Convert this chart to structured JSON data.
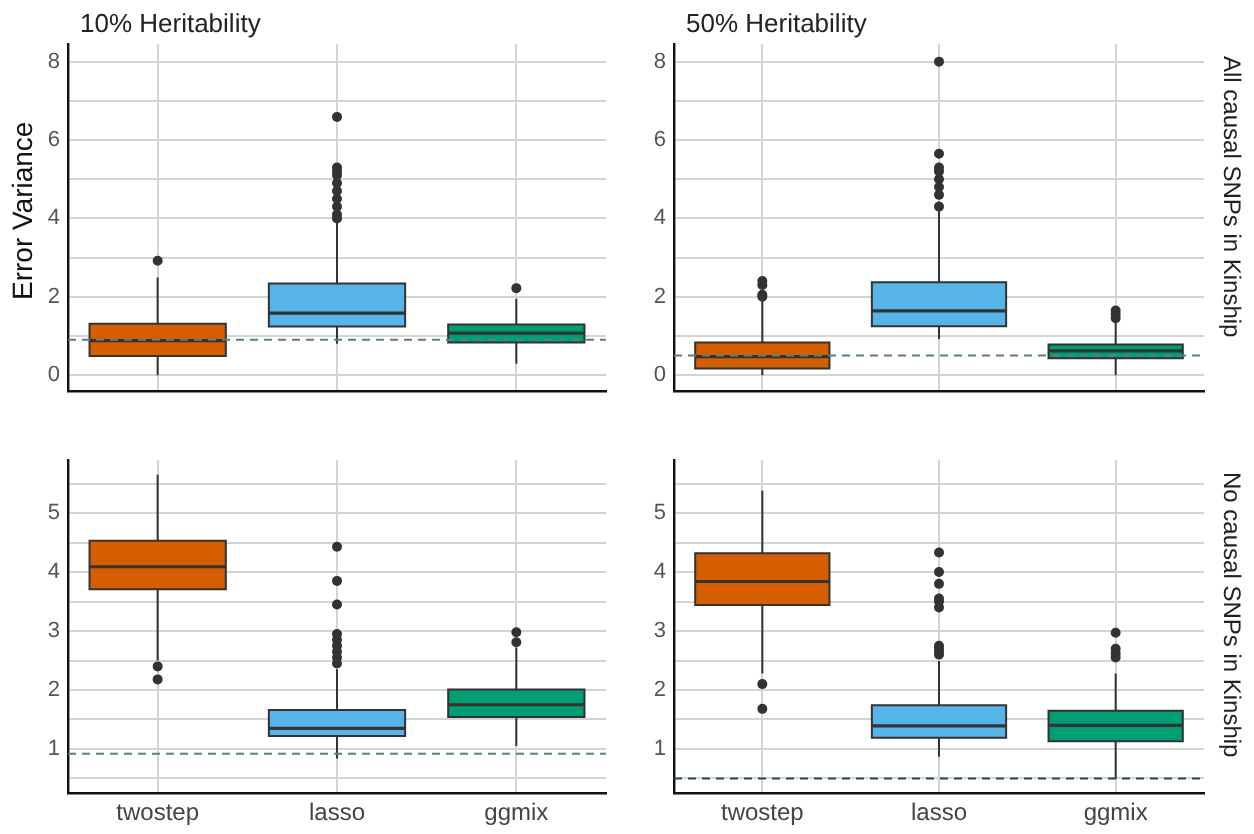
{
  "chart_data": [
    {
      "type": "box",
      "title": "10% Heritability",
      "ylabel": "Error Variance",
      "categories": [
        null,
        null,
        null
      ],
      "colors": [
        "#d55e00",
        "#56b4e9",
        "#009e73"
      ],
      "boxes": [
        {
          "low": 0,
          "q1": 0.49,
          "median": 0.88,
          "q3": 1.31,
          "high": 2.49,
          "outliers": [
            2.92
          ]
        },
        {
          "low": 0.8,
          "q1": 1.24,
          "median": 1.58,
          "q3": 2.34,
          "high": 3.9,
          "outliers": [
            4.0,
            4.1,
            4.3,
            4.5,
            4.7,
            4.9,
            5.1,
            5.2,
            5.3,
            6.59
          ]
        },
        {
          "low": 0.29,
          "q1": 0.83,
          "median": 1.07,
          "q3": 1.29,
          "high": 1.95,
          "outliers": [
            2.22
          ]
        }
      ],
      "ylim": [
        -0.4,
        8.45
      ],
      "yticks": [
        0,
        {
          "value": 1,
          "label": null
        },
        2,
        {
          "value": 3,
          "label": null
        },
        4,
        {
          "value": 5,
          "label": null
        },
        6,
        {
          "value": 7,
          "label": null
        },
        8
      ],
      "grid": true,
      "tick_labels": "y",
      "ref_lines": [
        {
          "axis": "y",
          "value": 0.9,
          "color": "#5a8080",
          "line_style": "dashed"
        }
      ]
    },
    {
      "type": "box",
      "title": "50% Heritability",
      "annotations": [
        "All causal SNPs in Kinship"
      ],
      "categories": [
        null,
        null,
        null
      ],
      "colors": [
        "#d55e00",
        "#56b4e9",
        "#009e73"
      ],
      "boxes": [
        {
          "low": 0,
          "q1": 0.17,
          "median": 0.47,
          "q3": 0.83,
          "high": 1.89,
          "outliers": [
            2.0,
            2.05,
            2.3,
            2.4
          ]
        },
        {
          "low": 0.92,
          "q1": 1.25,
          "median": 1.64,
          "q3": 2.37,
          "high": 4.2,
          "outliers": [
            4.3,
            4.6,
            4.8,
            5.0,
            5.2,
            5.3,
            5.65,
            8.0
          ]
        },
        {
          "low": 0,
          "q1": 0.43,
          "median": 0.62,
          "q3": 0.78,
          "high": 1.35,
          "outliers": [
            1.45,
            1.55,
            1.65
          ]
        }
      ],
      "ylim": [
        -0.4,
        8.45
      ],
      "yticks": [
        0,
        {
          "value": 1,
          "label": null
        },
        2,
        {
          "value": 3,
          "label": null
        },
        4,
        {
          "value": 5,
          "label": null
        },
        6,
        {
          "value": 7,
          "label": null
        },
        8
      ],
      "grid": true,
      "tick_labels": "y",
      "ref_lines": [
        {
          "axis": "y",
          "value": 0.5,
          "color": "#5a8080",
          "line_style": "dashed"
        }
      ]
    },
    {
      "type": "box",
      "categories": [
        "twostep",
        "lasso",
        "ggmix"
      ],
      "colors": [
        "#d55e00",
        "#56b4e9",
        "#009e73"
      ],
      "boxes": [
        {
          "low": 2.5,
          "q1": 3.71,
          "median": 4.09,
          "q3": 4.53,
          "high": 5.65,
          "outliers": [
            2.18,
            2.4
          ]
        },
        {
          "low": 0.84,
          "q1": 1.22,
          "median": 1.35,
          "q3": 1.66,
          "high": 2.35,
          "outliers": [
            2.45,
            2.55,
            2.65,
            2.75,
            2.85,
            2.95,
            3.45,
            3.85,
            4.43
          ]
        },
        {
          "low": 1.05,
          "q1": 1.54,
          "median": 1.75,
          "q3": 2.01,
          "high": 2.72,
          "outliers": [
            2.81,
            2.98
          ]
        }
      ],
      "ylim": [
        0.25,
        5.9
      ],
      "yticks": [
        {
          "value": 0.5,
          "label": null
        },
        1,
        {
          "value": 1.5,
          "label": null
        },
        2,
        {
          "value": 2.5,
          "label": null
        },
        3,
        {
          "value": 3.5,
          "label": null
        },
        4,
        {
          "value": 4.5,
          "label": null
        },
        5,
        {
          "value": 5.5,
          "label": null
        }
      ],
      "grid": true,
      "ref_lines": [
        {
          "axis": "y",
          "value": 0.92,
          "color": "#5a8080",
          "line_style": "dashed"
        }
      ]
    },
    {
      "type": "box",
      "annotations": [
        "No causal SNPs in Kinship"
      ],
      "categories": [
        "twostep",
        "lasso",
        "ggmix"
      ],
      "colors": [
        "#d55e00",
        "#56b4e9",
        "#009e73"
      ],
      "boxes": [
        {
          "low": 2.28,
          "q1": 3.44,
          "median": 3.84,
          "q3": 4.32,
          "high": 5.38,
          "outliers": [
            1.68,
            2.1
          ]
        },
        {
          "low": 0.87,
          "q1": 1.19,
          "median": 1.39,
          "q3": 1.74,
          "high": 2.49,
          "outliers": [
            2.6,
            2.65,
            2.7,
            2.75,
            3.4,
            3.5,
            3.55,
            3.8,
            4.0,
            4.33
          ]
        },
        {
          "low": 0.49,
          "q1": 1.13,
          "median": 1.4,
          "q3": 1.65,
          "high": 2.28,
          "outliers": [
            2.55,
            2.62,
            2.7,
            2.97
          ]
        }
      ],
      "ylim": [
        0.25,
        5.9
      ],
      "yticks": [
        {
          "value": 0.5,
          "label": null
        },
        1,
        {
          "value": 1.5,
          "label": null
        },
        2,
        {
          "value": 2.5,
          "label": null
        },
        3,
        {
          "value": 3.5,
          "label": null
        },
        4,
        {
          "value": 4.5,
          "label": null
        },
        5,
        {
          "value": 5.5,
          "label": null
        }
      ],
      "grid": true,
      "ref_lines": [
        {
          "axis": "y",
          "value": 0.5,
          "color": "#1f4f3f",
          "line_style": "dashed"
        }
      ]
    }
  ]
}
